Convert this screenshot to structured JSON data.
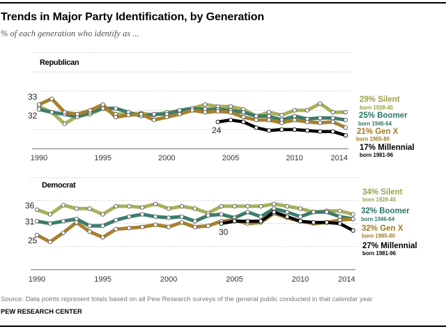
{
  "header": {
    "title": "Trends in Major Party Identification, by Generation",
    "subtitle": "% of each generation who identify as ..."
  },
  "footer": {
    "source": "Source: Data points represent totals based on all Pew Research surveys of the general public conducted in that calendar year",
    "credit": "PEW RESEARCH CENTER"
  },
  "chart_data": [
    {
      "type": "line",
      "title": "Republican",
      "xlabel": "",
      "ylabel": "",
      "x": [
        1990,
        1991,
        1992,
        1993,
        1994,
        1995,
        1996,
        1997,
        1998,
        1999,
        2000,
        2001,
        2002,
        2003,
        2004,
        2005,
        2006,
        2007,
        2008,
        2009,
        2010,
        2011,
        2012,
        2013,
        2014
      ],
      "xticks": [
        1990,
        1995,
        2000,
        2005,
        2010,
        2014
      ],
      "xtick_labels": [
        "1990",
        "1995",
        "2000",
        "2005",
        "2010",
        "2014"
      ],
      "ylim": [
        10,
        60
      ],
      "gridlines": [
        20,
        30,
        40,
        50,
        60
      ],
      "grid": true,
      "legend_position": "right",
      "series": [
        {
          "name": "Silent",
          "end_label": "29% Silent",
          "born": "born 1928-45",
          "color": "#a9b05a",
          "label_color": "#9aa045",
          "values": [
            32,
            29,
            23,
            27,
            28,
            31,
            28,
            28,
            28.5,
            27.5,
            29,
            29.5,
            31,
            33,
            32,
            32,
            30.5,
            27,
            29,
            27.5,
            30,
            30,
            33.5,
            29,
            29
          ]
        },
        {
          "name": "Boomer",
          "end_label": "25% Boomer",
          "born": "born 1946-64",
          "color": "#3a7d6d",
          "label_color": "#2f7566",
          "values": [
            30.5,
            29,
            28,
            26.5,
            29,
            31,
            31,
            29,
            27,
            28,
            28,
            30,
            31,
            30.5,
            30.5,
            30,
            29,
            27,
            27,
            25,
            27,
            25.5,
            26,
            26,
            25
          ]
        },
        {
          "name": "Gen X",
          "end_label": "21% Gen X",
          "born": "born 1965-80",
          "color": "#a8812c",
          "label_color": "#a27a22",
          "values": [
            33,
            36,
            29,
            28,
            30,
            33,
            26.5,
            27.5,
            28,
            25,
            26.5,
            28,
            30,
            29,
            29.5,
            29,
            26.5,
            25,
            25,
            23.5,
            25,
            24,
            23.5,
            24,
            21
          ]
        },
        {
          "name": "Millennial",
          "end_label": "17% Millennial",
          "born": "born 1981-96",
          "color": "#000000",
          "label_color": "#000000",
          "values": [
            null,
            null,
            null,
            null,
            null,
            null,
            null,
            null,
            null,
            null,
            null,
            null,
            null,
            null,
            24,
            25,
            24,
            21,
            19.5,
            20,
            20,
            19.5,
            19,
            19,
            17
          ]
        }
      ],
      "annotations": [
        {
          "series": "Gen X",
          "year": 1990,
          "label": "33"
        },
        {
          "series": "Silent",
          "year": 1990,
          "label": "32"
        },
        {
          "series": "Millennial",
          "year": 2004,
          "label": "24"
        }
      ]
    },
    {
      "type": "line",
      "title": "Democrat",
      "xlabel": "",
      "ylabel": "",
      "x": [
        1990,
        1991,
        1992,
        1993,
        1994,
        1995,
        1996,
        1997,
        1998,
        1999,
        2000,
        2001,
        2002,
        2003,
        2004,
        2005,
        2006,
        2007,
        2008,
        2009,
        2010,
        2011,
        2012,
        2013,
        2014
      ],
      "xticks": [
        1990,
        1995,
        2000,
        2005,
        2010,
        2014
      ],
      "xtick_labels": [
        "1990",
        "1995",
        "2000",
        "2005",
        "2010",
        "2014"
      ],
      "ylim": [
        10,
        50
      ],
      "gridlines": [
        20,
        30,
        40,
        50
      ],
      "grid": true,
      "legend_position": "right",
      "series": [
        {
          "name": "Silent",
          "end_label": "34% Silent",
          "born": "born 1928-45",
          "color": "#a9b05a",
          "label_color": "#9aa045",
          "values": [
            36,
            34,
            38,
            36.5,
            36.5,
            34,
            37.5,
            37.5,
            37,
            38.5,
            36.5,
            37.5,
            36.5,
            34.5,
            37.5,
            37.5,
            37.5,
            37.5,
            38.5,
            37.5,
            36.5,
            35,
            35.5,
            35.5,
            34
          ]
        },
        {
          "name": "Boomer",
          "end_label": "32% Boomer",
          "born": "born 1946-64",
          "color": "#3a7d6d",
          "label_color": "#2f7566",
          "values": [
            31,
            30,
            31,
            32,
            29,
            29,
            31.5,
            33,
            34,
            33,
            32.5,
            33,
            31,
            33.5,
            34,
            32.5,
            35,
            33,
            36.5,
            35,
            33,
            35,
            35,
            33,
            32
          ]
        },
        {
          "name": "Gen X",
          "end_label": "32% Gen X",
          "born": "born 1965-80",
          "color": "#a8812c",
          "label_color": "#a27a22",
          "values": [
            25,
            22,
            26,
            30.5,
            26.5,
            24,
            27.5,
            28,
            28.5,
            29.5,
            28.5,
            30.5,
            28.5,
            29,
            31,
            31.5,
            30,
            30.5,
            34.5,
            32.5,
            31,
            30,
            30.5,
            31.5,
            32
          ]
        },
        {
          "name": "Millennial",
          "end_label": "27% Millennial",
          "born": "born 1981-96",
          "color": "#000000",
          "label_color": "#000000",
          "values": [
            null,
            null,
            null,
            null,
            null,
            null,
            null,
            null,
            null,
            null,
            null,
            null,
            null,
            null,
            30,
            31,
            31,
            31,
            35,
            33,
            31,
            30.5,
            30.5,
            30,
            27
          ]
        }
      ],
      "annotations": [
        {
          "series": "Silent",
          "year": 1990,
          "label": "36"
        },
        {
          "series": "Boomer",
          "year": 1990,
          "label": "31"
        },
        {
          "series": "Gen X",
          "year": 1990,
          "label": "25"
        },
        {
          "series": "Millennial",
          "year": 2004,
          "label": "30"
        }
      ]
    }
  ]
}
